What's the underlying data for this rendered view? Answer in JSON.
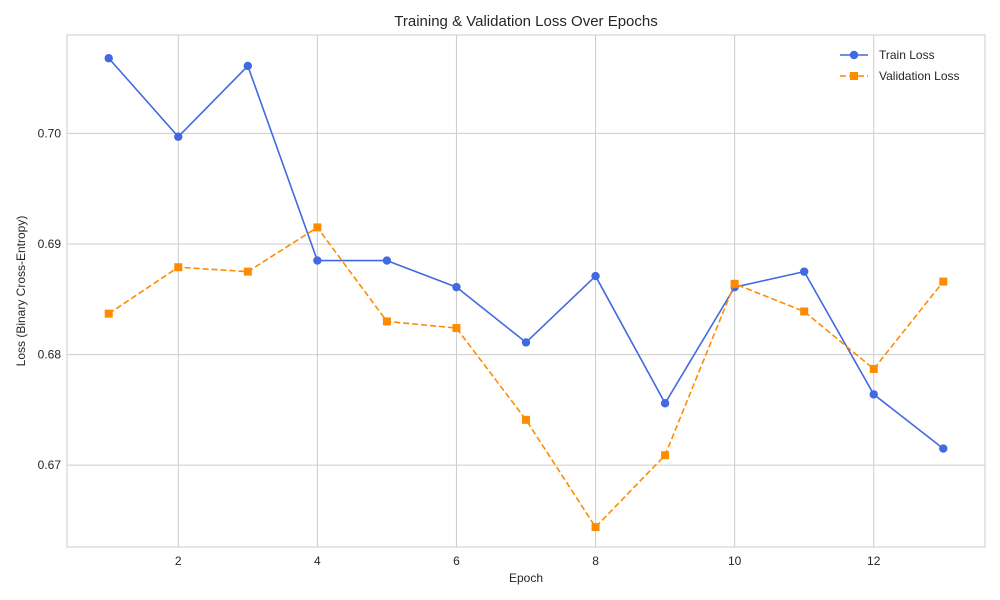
{
  "chart_data": {
    "type": "line",
    "title": "Training & Validation Loss Over Epochs",
    "xlabel": "Epoch",
    "ylabel": "Loss (Binary Cross-Entropy)",
    "xlim": [
      0.4,
      13.6
    ],
    "ylim": [
      0.6626,
      0.7089
    ],
    "xticks": [
      2,
      4,
      6,
      8,
      10,
      12
    ],
    "yticks": [
      0.67,
      0.68,
      0.69,
      0.7
    ],
    "xtick_labels": [
      "2",
      "4",
      "6",
      "8",
      "10",
      "12"
    ],
    "ytick_labels": [
      "0.67",
      "0.68",
      "0.69",
      "0.70"
    ],
    "grid": true,
    "legend_position": "top-right",
    "x": [
      1,
      2,
      3,
      4,
      5,
      6,
      7,
      8,
      9,
      10,
      11,
      12,
      13
    ],
    "series": [
      {
        "name": "Train Loss",
        "color": "#4169e1",
        "line_style": "solid",
        "marker": "circle",
        "values": [
          0.7068,
          0.6997,
          0.7061,
          0.6885,
          0.6885,
          0.6861,
          0.6811,
          0.6871,
          0.6756,
          0.6861,
          0.6875,
          0.6764,
          0.6715
        ]
      },
      {
        "name": "Validation Loss",
        "color": "#ff8c00",
        "line_style": "dashed",
        "marker": "square",
        "values": [
          0.6837,
          0.6879,
          0.6875,
          0.6915,
          0.683,
          0.6824,
          0.6741,
          0.6644,
          0.6709,
          0.6864,
          0.6839,
          0.6787,
          0.6866
        ]
      }
    ]
  }
}
